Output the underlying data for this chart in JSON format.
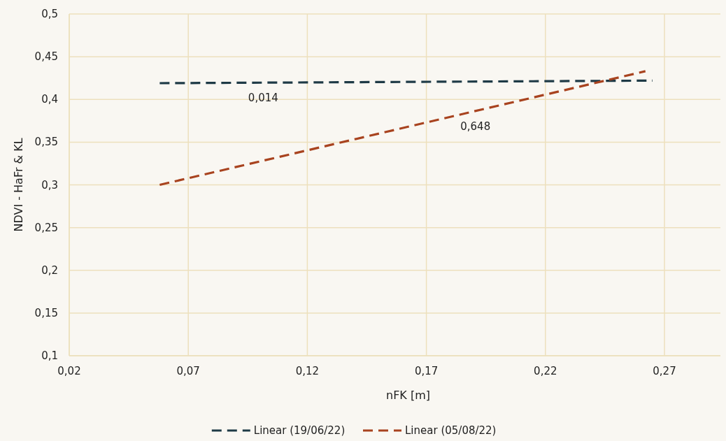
{
  "chart_data": {
    "type": "line",
    "xlabel": "nFK [m]",
    "ylabel": "NDVI - HaFr & KL",
    "xlim": [
      0.02,
      0.2935
    ],
    "ylim": [
      0.1,
      0.5
    ],
    "xticks": [
      {
        "value": 0.02,
        "label": "0,02"
      },
      {
        "value": 0.07,
        "label": "0,07"
      },
      {
        "value": 0.12,
        "label": "0,12"
      },
      {
        "value": 0.17,
        "label": "0,17"
      },
      {
        "value": 0.22,
        "label": "0,22"
      },
      {
        "value": 0.27,
        "label": "0,27"
      }
    ],
    "yticks": [
      {
        "value": 0.1,
        "label": "0,1"
      },
      {
        "value": 0.15,
        "label": "0,15"
      },
      {
        "value": 0.2,
        "label": "0,2"
      },
      {
        "value": 0.25,
        "label": "0,25"
      },
      {
        "value": 0.3,
        "label": "0,3"
      },
      {
        "value": 0.35,
        "label": "0,35"
      },
      {
        "value": 0.4,
        "label": "0,4"
      },
      {
        "value": 0.45,
        "label": "0,45"
      },
      {
        "value": 0.5,
        "label": "0,5"
      }
    ],
    "grid": true,
    "legend": "bottom",
    "marker": "none",
    "line_style": "dashed",
    "series": [
      {
        "name": "Linear (19/06/22)",
        "color": "#1e3a46",
        "x": [
          0.058,
          0.265
        ],
        "values": [
          0.419,
          0.422
        ]
      },
      {
        "name": "Linear (05/08/22)",
        "color": "#a8431f",
        "x": [
          0.058,
          0.262
        ],
        "values": [
          0.3,
          0.433
        ]
      }
    ],
    "annotations": [
      "0,014",
      "0,648"
    ]
  }
}
